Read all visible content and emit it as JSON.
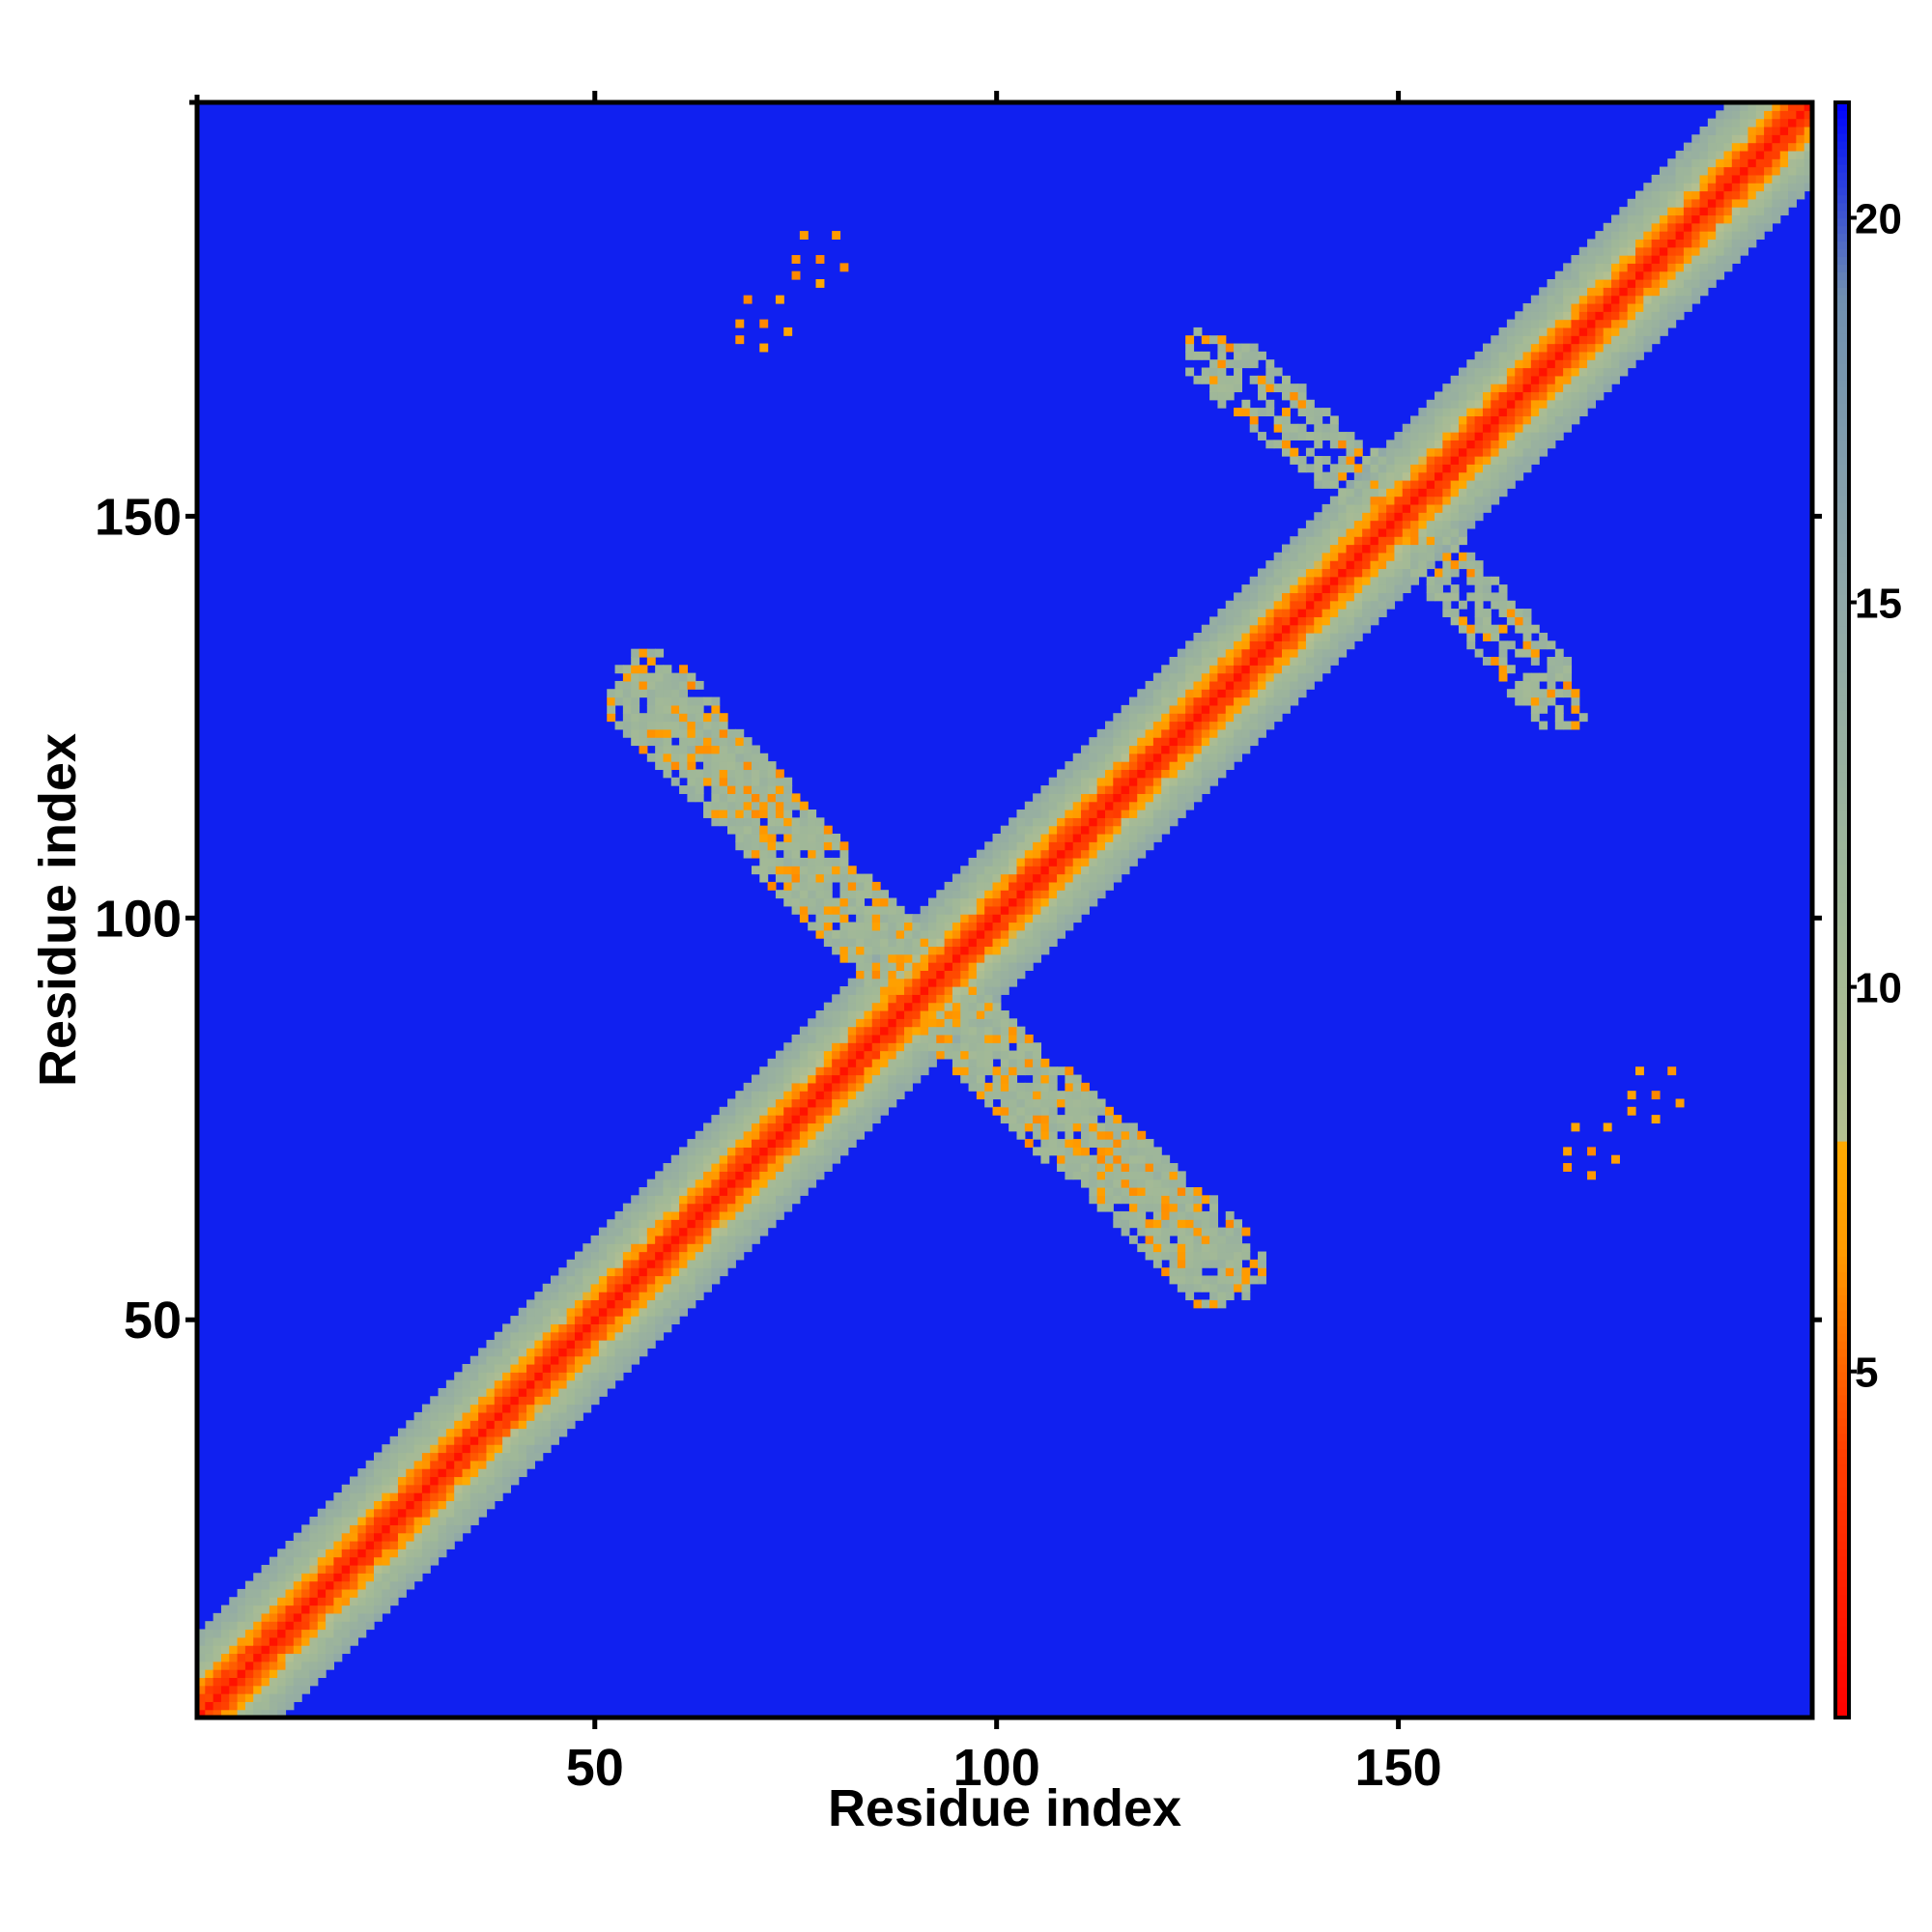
{
  "chart_data": {
    "type": "heatmap",
    "title": "",
    "xlabel": "Residue index",
    "ylabel": "Residue index",
    "xlim": [
      1,
      201
    ],
    "ylim": [
      1,
      201
    ],
    "x_ticks": [
      50,
      100,
      150
    ],
    "y_ticks": [
      50,
      100,
      150
    ],
    "x_tick_labels": [
      "50",
      "100",
      "150"
    ],
    "y_tick_labels": [
      "50",
      "100",
      "150"
    ],
    "colorbar": {
      "range": [
        0.5,
        21.5
      ],
      "ticks": [
        5,
        10,
        15,
        20
      ],
      "tick_labels": [
        "5",
        "10",
        "15",
        "20"
      ],
      "stops": [
        {
          "value": 0.5,
          "color": "#ff0000"
        },
        {
          "value": 4.0,
          "color": "#ff4000"
        },
        {
          "value": 6.5,
          "color": "#ff9900"
        },
        {
          "value": 8.0,
          "color": "#ffaa00"
        },
        {
          "value": 8.05,
          "color": "#b4c090"
        },
        {
          "value": 11.0,
          "color": "#a0b898"
        },
        {
          "value": 15.0,
          "color": "#90a8a8"
        },
        {
          "value": 19.0,
          "color": "#7090b0"
        },
        {
          "value": 21.0,
          "color": "#1020f0"
        },
        {
          "value": 21.5,
          "color": "#0000ff"
        }
      ]
    },
    "background_value": 21,
    "diagonal_band": {
      "core_value": 2,
      "half_width": 10
    },
    "cross_contacts": {
      "center": [
        91,
        91
      ],
      "arm_end_upper_left": [
        57,
        129
      ],
      "arm_end_lower_right": [
        127,
        56
      ],
      "value_range": [
        6,
        12
      ]
    },
    "upper_cross_contacts": {
      "center": [
        150,
        150
      ],
      "arm_end_upper_left": [
        127,
        170
      ],
      "arm_end_lower_right": [
        168,
        130
      ]
    },
    "isolated_contacts": [
      {
        "x": 78,
        "y": 182,
        "value": 6
      },
      {
        "x": 71,
        "y": 174,
        "value": 6
      },
      {
        "x": 182,
        "y": 78,
        "value": 6
      },
      {
        "x": 174,
        "y": 71,
        "value": 6
      }
    ]
  }
}
